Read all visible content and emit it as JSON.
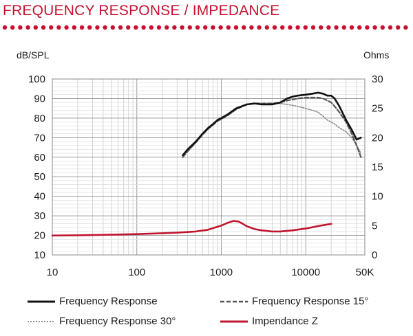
{
  "title": "FREQUENCY RESPONSE / IMPEDANCE",
  "colors": {
    "accent": "#c8102e",
    "fr": "#111111",
    "fr15": "#555555",
    "fr30": "#8a8a8a",
    "imp": "#c0152f",
    "grid": "#c9c9c9"
  },
  "chart_data": {
    "type": "line",
    "x_scale": "log",
    "xlim": [
      10,
      50000
    ],
    "x_ticks": [
      10,
      100,
      1000,
      10000,
      50000
    ],
    "x_tick_labels": [
      "10",
      "100",
      "1000",
      "10000",
      "50K"
    ],
    "ylabel": "dB/SPL",
    "ylim": [
      10,
      100
    ],
    "y_ticks": [
      10,
      20,
      30,
      40,
      50,
      60,
      70,
      80,
      90,
      100
    ],
    "y2label": "Ohms",
    "y2lim": [
      0,
      30
    ],
    "y2_ticks": [
      0,
      5,
      10,
      15,
      20,
      25,
      30
    ],
    "grid": true,
    "legend_position": "bottom",
    "series": [
      {
        "name": "Frequency Response",
        "axis": "left",
        "style": "solid",
        "x": [
          350,
          400,
          500,
          600,
          700,
          800,
          900,
          1000,
          1200,
          1500,
          2000,
          2500,
          3000,
          4000,
          5000,
          6000,
          7000,
          8000,
          10000,
          12000,
          14000,
          16000,
          18000,
          20000,
          22000,
          25000,
          30000,
          35000,
          40000,
          45000
        ],
        "y": [
          61,
          64,
          68,
          72,
          75,
          77,
          79,
          80,
          82,
          85,
          87,
          87.5,
          87,
          87,
          88,
          90,
          91,
          91.5,
          92,
          92.5,
          93,
          92.5,
          91.5,
          91.5,
          90,
          86,
          79,
          74,
          69,
          70
        ]
      },
      {
        "name": "Frequency Response 15°",
        "axis": "left",
        "style": "dashed",
        "x": [
          350,
          400,
          500,
          600,
          700,
          800,
          900,
          1000,
          1200,
          1500,
          2000,
          2500,
          3000,
          4000,
          5000,
          6000,
          7000,
          8000,
          10000,
          12000,
          14000,
          16000,
          18000,
          20000,
          22000,
          25000,
          30000,
          35000,
          40000,
          45000
        ],
        "y": [
          60,
          63,
          67.5,
          71.5,
          74.5,
          76.5,
          78.5,
          79.5,
          81.5,
          84.5,
          87,
          87.5,
          87.5,
          87.5,
          88,
          89,
          89.5,
          90,
          90.5,
          90.5,
          90.5,
          90,
          89,
          88,
          86,
          83,
          78,
          72,
          66,
          60
        ]
      },
      {
        "name": "Frequency Response 30°",
        "axis": "left",
        "style": "dotted",
        "x": [
          350,
          400,
          500,
          600,
          700,
          800,
          900,
          1000,
          1200,
          1500,
          2000,
          2500,
          3000,
          4000,
          5000,
          6000,
          7000,
          8000,
          10000,
          12000,
          14000,
          16000,
          18000,
          20000,
          22000,
          25000,
          30000,
          35000,
          40000,
          45000
        ],
        "y": [
          60,
          63,
          67.5,
          71.5,
          74.5,
          76.5,
          78.5,
          79.5,
          81.5,
          84.5,
          87,
          87.5,
          87.5,
          87.5,
          87.5,
          87,
          86.5,
          86,
          85,
          84,
          83,
          81,
          79,
          78,
          77,
          75,
          73,
          70,
          66,
          62
        ]
      },
      {
        "name": "Impendance Z",
        "axis": "right",
        "style": "solid",
        "x": [
          10,
          20,
          50,
          100,
          200,
          300,
          500,
          700,
          1000,
          1200,
          1400,
          1600,
          1800,
          2000,
          2500,
          3000,
          4000,
          5000,
          7000,
          10000,
          15000,
          20000
        ],
        "y": [
          3.3,
          3.35,
          3.45,
          3.55,
          3.7,
          3.8,
          4.0,
          4.3,
          5.0,
          5.5,
          5.8,
          5.7,
          5.3,
          4.9,
          4.4,
          4.2,
          4.0,
          4.0,
          4.2,
          4.5,
          5.0,
          5.3
        ]
      }
    ]
  }
}
